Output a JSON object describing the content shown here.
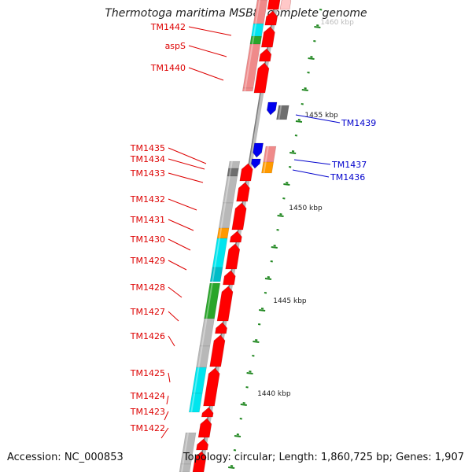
{
  "title": "Thermotoga maritima MSB8, complete genome",
  "footer": {
    "accession": "Accession: NC_000853",
    "summary": "Topology: circular; Length: 1,860,725 bp; Genes: 1,907"
  },
  "colors": {
    "label_forward": "#dd0000",
    "label_reverse": "#0000cc",
    "tick": "#228822",
    "backbone": "#888888"
  },
  "scale_labels": [
    {
      "kbp": 1460,
      "text": "1460 kbp"
    },
    {
      "kbp": 1455,
      "text": "1455 kbp"
    },
    {
      "kbp": 1450,
      "text": "1450 kbp"
    },
    {
      "kbp": 1445,
      "text": "1445 kbp"
    },
    {
      "kbp": 1440,
      "text": "1440 kbp"
    }
  ],
  "genes_forward": [
    {
      "name": "TM1442",
      "kind": "cyan"
    },
    {
      "name": "aspS",
      "kind": "pink"
    },
    {
      "name": "TM1440",
      "kind": "pink"
    },
    {
      "name": "TM1435",
      "kind": "gray"
    },
    {
      "name": "TM1434",
      "kind": "darkgray"
    },
    {
      "name": "TM1433",
      "kind": "gray"
    },
    {
      "name": "TM1432",
      "kind": "gray"
    },
    {
      "name": "TM1431",
      "kind": "orange"
    },
    {
      "name": "TM1430",
      "kind": "cyan"
    },
    {
      "name": "TM1429",
      "kind": "teal"
    },
    {
      "name": "TM1428",
      "kind": "green"
    },
    {
      "name": "TM1427",
      "kind": "gray"
    },
    {
      "name": "TM1426",
      "kind": "gray"
    },
    {
      "name": "TM1425",
      "kind": "cyan"
    },
    {
      "name": "TM1424",
      "kind": "cyan"
    },
    {
      "name": "TM1423",
      "kind": "gray"
    },
    {
      "name": "TM1422",
      "kind": "gray"
    }
  ],
  "genes_reverse": [
    {
      "name": "TM1439",
      "kind": "darkgray"
    },
    {
      "name": "TM1437",
      "kind": "pink"
    },
    {
      "name": "TM1436",
      "kind": "orange"
    }
  ]
}
